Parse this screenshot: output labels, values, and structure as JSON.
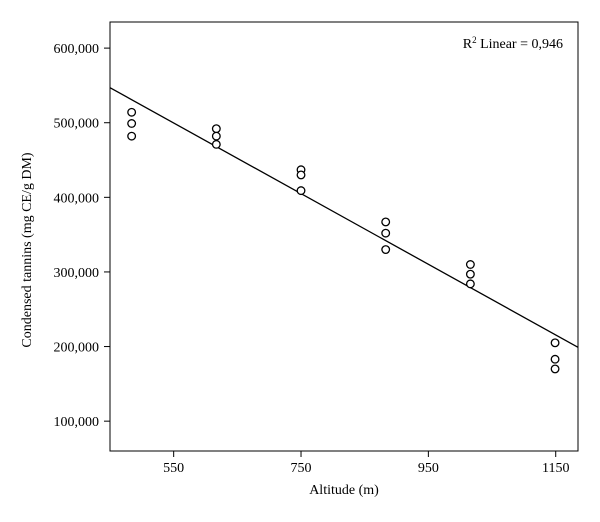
{
  "chart_data": {
    "type": "scatter",
    "title": "",
    "xlabel": "Altitude (m)",
    "ylabel": "Condensed tannins (mg CE/g DM)",
    "xlim": [
      450,
      1185
    ],
    "ylim": [
      60000,
      635000
    ],
    "x_ticks": [
      550,
      750,
      950,
      1150
    ],
    "x_tick_labels": [
      "550",
      "750",
      "950",
      "1150"
    ],
    "y_ticks": [
      100000,
      200000,
      300000,
      400000,
      500000,
      600000
    ],
    "y_tick_labels": [
      "100,000",
      "200,000",
      "300,000",
      "400,000",
      "500,000",
      "600,000"
    ],
    "grid": false,
    "marker": "open-circle",
    "series": [
      {
        "points": [
          {
            "x": 484,
            "y": 514000
          },
          {
            "x": 484,
            "y": 499000
          },
          {
            "x": 484,
            "y": 482000
          },
          {
            "x": 617,
            "y": 492000
          },
          {
            "x": 617,
            "y": 482000
          },
          {
            "x": 617,
            "y": 471000
          },
          {
            "x": 750,
            "y": 437000
          },
          {
            "x": 750,
            "y": 430000
          },
          {
            "x": 750,
            "y": 409000
          },
          {
            "x": 883,
            "y": 367000
          },
          {
            "x": 883,
            "y": 352000
          },
          {
            "x": 883,
            "y": 330000
          },
          {
            "x": 1016,
            "y": 310000
          },
          {
            "x": 1016,
            "y": 297000
          },
          {
            "x": 1016,
            "y": 284000
          },
          {
            "x": 1149,
            "y": 205000
          },
          {
            "x": 1149,
            "y": 183000
          },
          {
            "x": 1149,
            "y": 170000
          }
        ]
      }
    ],
    "fit_line": {
      "points": [
        {
          "x": 450,
          "y": 547000
        },
        {
          "x": 1185,
          "y": 199000
        }
      ]
    },
    "annotation": {
      "prefix": "R",
      "superscript": "2",
      "suffix": " Linear = 0,946",
      "placement": "top-right"
    }
  }
}
